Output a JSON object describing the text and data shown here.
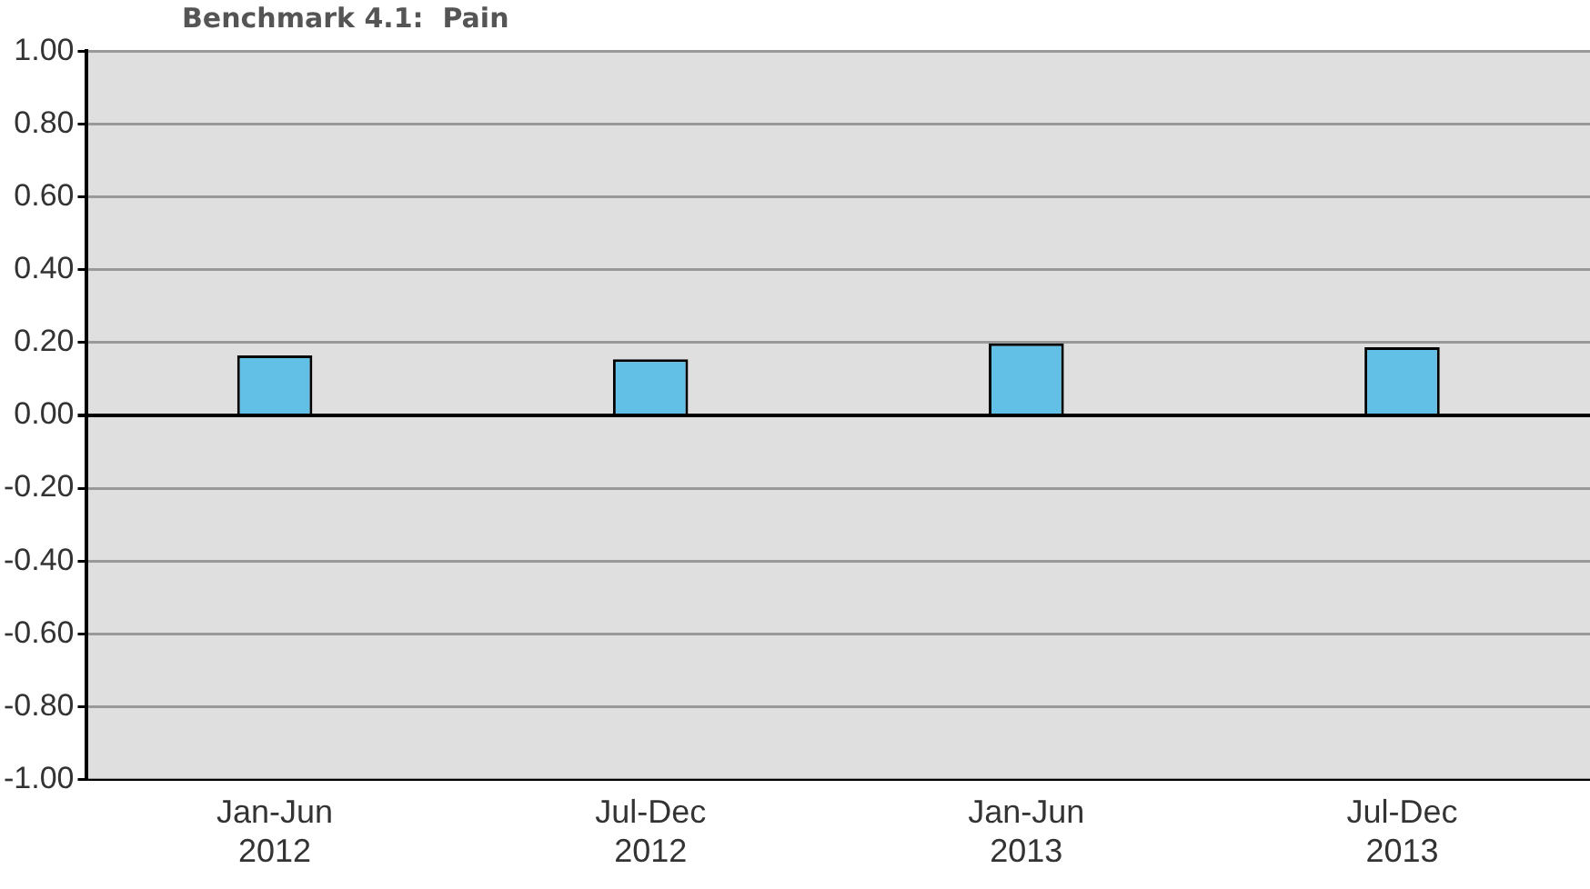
{
  "chart_data": {
    "type": "bar",
    "title": "Benchmark 4.1:  Pain",
    "categories": [
      "Jan-Jun\n2012",
      "Jul-Dec\n2012",
      "Jan-Jun\n2013",
      "Jul-Dec\n2013"
    ],
    "values": [
      0.165,
      0.154,
      0.198,
      0.187
    ],
    "color": "#62bfe6",
    "ylim": [
      -1,
      1
    ],
    "yticks": [
      {
        "value": -1,
        "label": "-1.00"
      },
      {
        "value": -0.8,
        "label": "-0.80"
      },
      {
        "value": -0.6,
        "label": "-0.60"
      },
      {
        "value": -0.4,
        "label": "-0.40"
      },
      {
        "value": -0.2,
        "label": "-0.20"
      },
      {
        "value": 0,
        "label": "0.00"
      },
      {
        "value": 0.2,
        "label": "0.20"
      },
      {
        "value": 0.4,
        "label": "0.40"
      },
      {
        "value": 0.6,
        "label": "0.60"
      },
      {
        "value": 0.8,
        "label": "0.80"
      },
      {
        "value": 1,
        "label": "1.00"
      }
    ],
    "grid": "y"
  }
}
